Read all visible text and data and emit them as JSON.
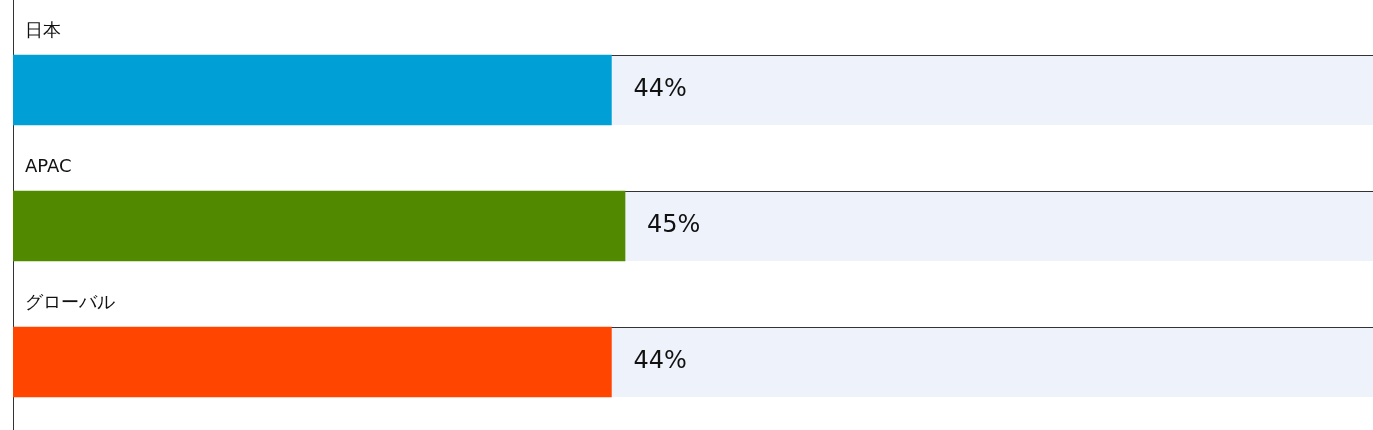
{
  "chart_data": {
    "type": "bar",
    "orientation": "horizontal",
    "categories": [
      "日本",
      "APAC",
      "グローバル"
    ],
    "values": [
      44,
      45,
      44
    ],
    "colors": [
      "#00a0d6",
      "#518a00",
      "#ff4500"
    ],
    "value_labels": [
      "44%",
      "45%",
      "44%"
    ],
    "xlim": [
      0,
      100
    ],
    "tick_labels": false,
    "legend": false
  }
}
